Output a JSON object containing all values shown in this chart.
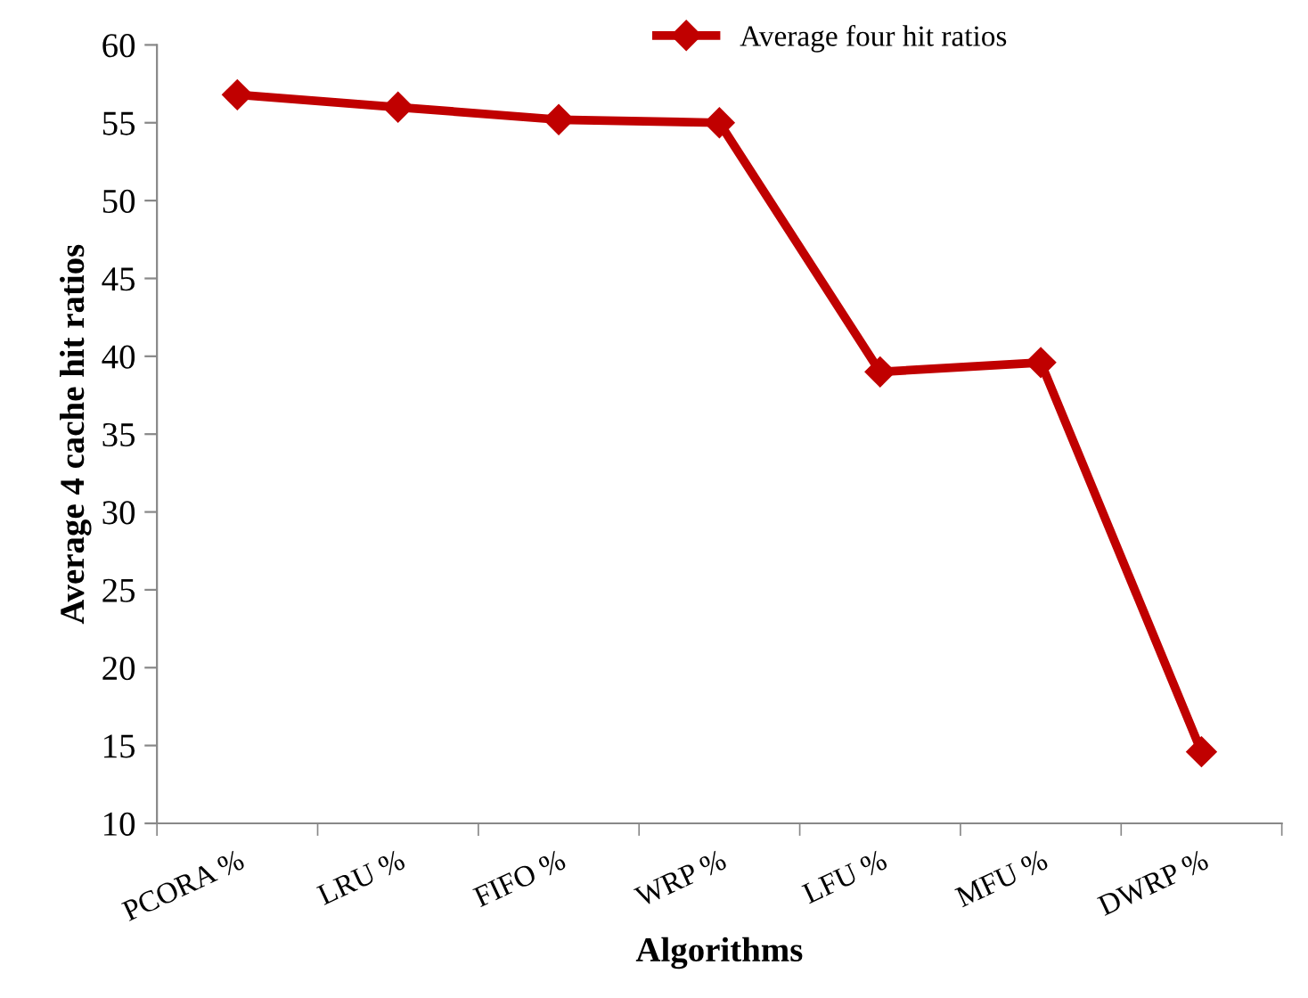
{
  "chart_data": {
    "type": "line",
    "xlabel": "Algorithms",
    "ylabel": "Average 4 cache hit ratios",
    "categories": [
      "PCORA %",
      "LRU %",
      "FIFO %",
      "WRP %",
      "LFU %",
      "MFU %",
      "DWRP %"
    ],
    "series": [
      {
        "name": "Average four hit ratios",
        "color": "#c00000",
        "values": [
          56.8,
          56.0,
          55.2,
          55.0,
          39.0,
          39.6,
          14.6
        ]
      }
    ],
    "ylim": [
      10,
      60
    ],
    "yticks": [
      10,
      15,
      20,
      25,
      30,
      35,
      40,
      45,
      50,
      55,
      60
    ],
    "grid": false,
    "legend": "top",
    "marker": "diamond",
    "line_style": "solid"
  }
}
